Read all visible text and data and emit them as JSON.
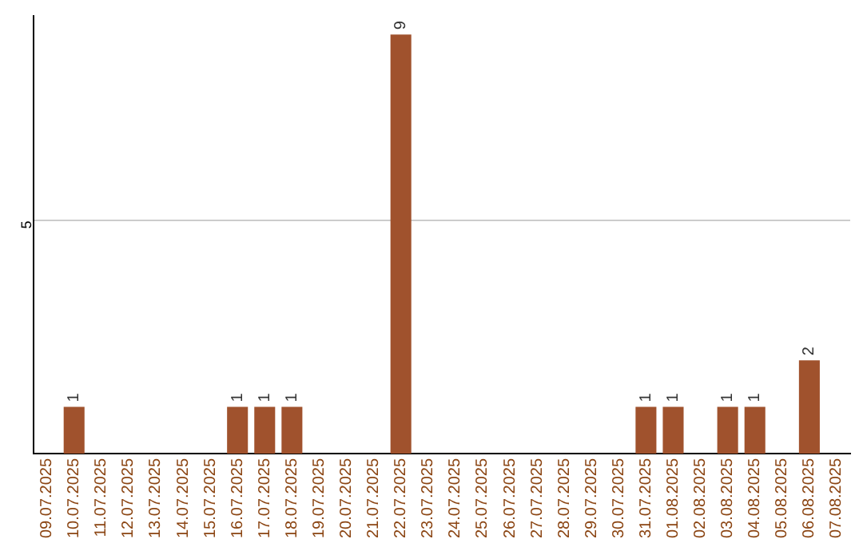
{
  "chart_data": {
    "type": "bar",
    "categories": [
      "09.07.2025",
      "10.07.2025",
      "11.07.2025",
      "12.07.2025",
      "13.07.2025",
      "14.07.2025",
      "15.07.2025",
      "16.07.2025",
      "17.07.2025",
      "18.07.2025",
      "19.07.2025",
      "20.07.2025",
      "21.07.2025",
      "22.07.2025",
      "23.07.2025",
      "24.07.2025",
      "25.07.2025",
      "26.07.2025",
      "27.07.2025",
      "28.07.2025",
      "29.07.2025",
      "30.07.2025",
      "31.07.2025",
      "01.08.2025",
      "02.08.2025",
      "03.08.2025",
      "04.08.2025",
      "05.08.2025",
      "06.08.2025",
      "07.08.2025"
    ],
    "values": [
      0,
      1,
      0,
      0,
      0,
      0,
      0,
      1,
      1,
      1,
      0,
      0,
      0,
      9,
      0,
      0,
      0,
      0,
      0,
      0,
      0,
      0,
      1,
      1,
      0,
      1,
      1,
      0,
      2,
      0
    ],
    "value_labels": [
      null,
      "1",
      null,
      null,
      null,
      null,
      null,
      "1",
      "1",
      "1",
      null,
      null,
      null,
      "9",
      null,
      null,
      null,
      null,
      null,
      null,
      null,
      null,
      "1",
      "1",
      null,
      "1",
      "1",
      null,
      "2",
      null
    ],
    "color": "#a0522d",
    "ylim": [
      0,
      9.4
    ],
    "yticks": [
      5
    ],
    "grid": "y",
    "legend": false
  }
}
